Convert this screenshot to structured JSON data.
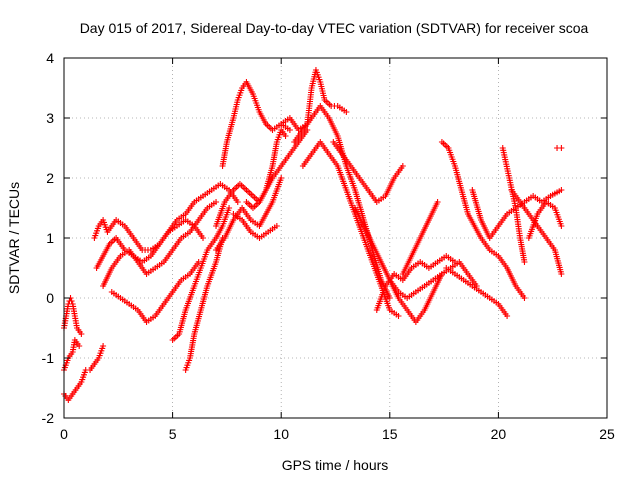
{
  "chart_data": {
    "type": "scatter",
    "title": "Day 015 of 2017, Sidereal Day-to-day VTEC variation (SDTVAR) for receiver scoa",
    "xlabel": "GPS time / hours",
    "ylabel": "SDTVAR / TECUs",
    "xlim": [
      0,
      25
    ],
    "ylim": [
      -2,
      4
    ],
    "xticks": [
      "0",
      "5",
      "10",
      "15",
      "20",
      "25"
    ],
    "yticks": [
      "-2",
      "-1",
      "0",
      "1",
      "2",
      "3",
      "4"
    ],
    "grid": true,
    "marker": "+",
    "colors": {
      "series": "#ff0000",
      "grid": "#a0a0a0",
      "axis": "#000000"
    },
    "series": [
      {
        "x": [
          0.0,
          0.2,
          0.4,
          0.6,
          0.8,
          1.0,
          1.2,
          1.4,
          1.6,
          1.8
        ],
        "y": [
          -1.6,
          -1.7,
          -1.6,
          -1.5,
          -1.4,
          -1.2,
          -1.2,
          -1.1,
          -1.0,
          -0.8
        ]
      },
      {
        "x": [
          0.0,
          0.2,
          0.4,
          0.5,
          0.7
        ],
        "y": [
          -1.2,
          -1.0,
          -0.9,
          -0.7,
          -0.8
        ]
      },
      {
        "x": [
          0.0,
          0.1,
          0.2,
          0.3,
          0.4,
          0.5,
          0.6,
          0.8
        ],
        "y": [
          -0.5,
          -0.3,
          -0.1,
          0.0,
          -0.1,
          -0.3,
          -0.5,
          -0.6
        ]
      },
      {
        "x": [
          1.4,
          1.6,
          1.8,
          2.0,
          2.4,
          2.8,
          3.2,
          3.6,
          4.0,
          4.4,
          4.8,
          5.2,
          5.6,
          6.0,
          6.4,
          6.8,
          7.2,
          7.6,
          8.0
        ],
        "y": [
          1.0,
          1.2,
          1.3,
          1.1,
          1.3,
          1.2,
          1.0,
          0.8,
          0.8,
          0.9,
          1.1,
          1.3,
          1.4,
          1.6,
          1.7,
          1.8,
          1.9,
          1.8,
          1.6
        ]
      },
      {
        "x": [
          1.5,
          1.8,
          2.1,
          2.4,
          2.8,
          3.2,
          3.6,
          4.0,
          4.4,
          4.8,
          5.2,
          5.6,
          6.0,
          6.4
        ],
        "y": [
          0.5,
          0.7,
          0.9,
          1.0,
          0.8,
          0.7,
          0.6,
          0.7,
          0.9,
          1.1,
          1.2,
          1.3,
          1.2,
          1.0
        ]
      },
      {
        "x": [
          1.8,
          2.2,
          2.6,
          3.0,
          3.4,
          3.8,
          4.2,
          4.6,
          5.0,
          5.4,
          5.8,
          6.2,
          6.6,
          7.0
        ],
        "y": [
          0.2,
          0.5,
          0.7,
          0.8,
          0.6,
          0.4,
          0.5,
          0.6,
          0.8,
          1.0,
          1.1,
          1.3,
          1.5,
          1.6
        ]
      },
      {
        "x": [
          2.2,
          2.6,
          3.0,
          3.4,
          3.8,
          4.2,
          4.6,
          5.0,
          5.4,
          5.8,
          6.2
        ],
        "y": [
          0.1,
          0.0,
          -0.1,
          -0.2,
          -0.4,
          -0.3,
          -0.1,
          0.1,
          0.3,
          0.4,
          0.6
        ]
      },
      {
        "x": [
          5.0,
          5.3,
          5.6,
          6.0,
          6.3,
          6.6,
          7.0,
          7.3,
          7.6
        ],
        "y": [
          -0.7,
          -0.6,
          -0.2,
          0.2,
          0.5,
          0.8,
          1.0,
          1.2,
          1.5
        ]
      },
      {
        "x": [
          5.6,
          5.8,
          6.0,
          6.3,
          6.6,
          7.0,
          7.3
        ],
        "y": [
          -1.2,
          -1.0,
          -0.6,
          -0.2,
          0.2,
          0.6,
          1.0
        ]
      },
      {
        "x": [
          7.0,
          7.4,
          7.8,
          8.1,
          8.4,
          8.7,
          9.0,
          9.3,
          9.6,
          10.0,
          10.4,
          10.8,
          11.2
        ],
        "y": [
          1.2,
          1.6,
          1.8,
          1.9,
          1.8,
          1.7,
          1.6,
          1.8,
          2.0,
          2.2,
          2.4,
          2.6,
          2.8
        ]
      },
      {
        "x": [
          7.3,
          7.5,
          7.8,
          8.0,
          8.2,
          8.4,
          8.7,
          9.0,
          9.3,
          9.6,
          10.0,
          10.4
        ],
        "y": [
          2.2,
          2.6,
          3.0,
          3.3,
          3.5,
          3.6,
          3.4,
          3.1,
          2.9,
          2.8,
          2.9,
          2.8
        ]
      },
      {
        "x": [
          7.0,
          7.4,
          7.8,
          8.2,
          8.6,
          9.0,
          9.3,
          9.6,
          10.0
        ],
        "y": [
          0.8,
          1.0,
          1.3,
          1.5,
          1.3,
          1.2,
          1.4,
          1.6,
          2.0
        ]
      },
      {
        "x": [
          8.4,
          8.7,
          9.0,
          9.3,
          9.6,
          9.8,
          10.0,
          10.2
        ],
        "y": [
          1.6,
          1.5,
          1.6,
          1.8,
          2.2,
          2.6,
          2.8,
          2.7
        ]
      },
      {
        "x": [
          7.8,
          8.2,
          8.6,
          9.0,
          9.4,
          9.8
        ],
        "y": [
          1.4,
          1.3,
          1.1,
          1.0,
          1.1,
          1.2
        ]
      },
      {
        "x": [
          10.0,
          10.4,
          10.8,
          11.2,
          11.4,
          11.6,
          11.8,
          12.0,
          12.3,
          12.6,
          13.0
        ],
        "y": [
          2.9,
          3.0,
          2.8,
          2.9,
          3.5,
          3.8,
          3.6,
          3.3,
          3.2,
          3.2,
          3.1
        ]
      },
      {
        "x": [
          10.6,
          11.0,
          11.4,
          11.8,
          12.2,
          12.6,
          13.0,
          13.4,
          13.8,
          14.2,
          14.6,
          15.0
        ],
        "y": [
          2.6,
          2.8,
          3.0,
          3.2,
          3.0,
          2.7,
          2.2,
          1.8,
          1.3,
          0.8,
          0.3,
          0.0
        ]
      },
      {
        "x": [
          11.0,
          11.4,
          11.8,
          12.2,
          12.6,
          13.0,
          13.4,
          13.8,
          14.2,
          14.6,
          15.0,
          15.4
        ],
        "y": [
          2.2,
          2.4,
          2.6,
          2.4,
          2.2,
          1.8,
          1.4,
          1.0,
          0.6,
          0.2,
          -0.2,
          -0.3
        ]
      },
      {
        "x": [
          12.4,
          12.8,
          13.2,
          13.6,
          14.0,
          14.4,
          14.8,
          15.2,
          15.6
        ],
        "y": [
          2.6,
          2.4,
          2.2,
          2.0,
          1.8,
          1.6,
          1.7,
          2.0,
          2.2
        ]
      },
      {
        "x": [
          13.4,
          13.8,
          14.2,
          14.6,
          15.0,
          15.4,
          15.8,
          16.2,
          16.6,
          17.0,
          17.4
        ],
        "y": [
          1.5,
          1.2,
          0.9,
          0.6,
          0.3,
          0.0,
          -0.2,
          -0.4,
          -0.2,
          0.1,
          0.4
        ]
      },
      {
        "x": [
          14.4,
          14.8,
          15.2,
          15.6,
          16.0,
          16.4,
          16.8,
          17.2,
          17.6,
          18.0
        ],
        "y": [
          -0.2,
          0.2,
          0.4,
          0.3,
          0.5,
          0.6,
          0.5,
          0.6,
          0.7,
          0.6
        ]
      },
      {
        "x": [
          15.0,
          15.4,
          15.8,
          16.2,
          16.6,
          17.0,
          17.4,
          17.8,
          18.2,
          18.6,
          19.0
        ],
        "y": [
          0.3,
          0.1,
          0.0,
          0.1,
          0.2,
          0.3,
          0.4,
          0.5,
          0.6,
          0.4,
          0.2
        ]
      },
      {
        "x": [
          15.6,
          16.0,
          16.4,
          16.8,
          17.2
        ],
        "y": [
          0.4,
          0.7,
          1.0,
          1.3,
          1.6
        ]
      },
      {
        "x": [
          17.4,
          17.7,
          18.0,
          18.3,
          18.6,
          18.9,
          19.2,
          19.6,
          20.0,
          20.4,
          20.8,
          21.2
        ],
        "y": [
          2.6,
          2.5,
          2.2,
          1.8,
          1.4,
          1.2,
          1.0,
          0.8,
          0.7,
          0.5,
          0.2,
          0.0
        ]
      },
      {
        "x": [
          17.6,
          18.0,
          18.4,
          18.8,
          19.2,
          19.6,
          20.0,
          20.4
        ],
        "y": [
          0.5,
          0.4,
          0.3,
          0.2,
          0.1,
          0.0,
          -0.1,
          -0.3
        ]
      },
      {
        "x": [
          18.8,
          19.2,
          19.6,
          20.0,
          20.4,
          20.8,
          21.2,
          21.6,
          22.0,
          22.4,
          22.9
        ],
        "y": [
          1.8,
          1.3,
          1.0,
          1.2,
          1.4,
          1.5,
          1.6,
          1.7,
          1.6,
          1.7,
          1.8
        ]
      },
      {
        "x": [
          20.2,
          20.5,
          20.8,
          21.0,
          21.2
        ],
        "y": [
          2.5,
          2.0,
          1.5,
          1.0,
          0.6
        ]
      },
      {
        "x": [
          20.6,
          21.0,
          21.4,
          21.8,
          22.2,
          22.6,
          22.9
        ],
        "y": [
          1.8,
          1.6,
          1.4,
          1.2,
          1.0,
          0.8,
          0.4
        ]
      },
      {
        "x": [
          21.4,
          21.8,
          22.2,
          22.6,
          22.9
        ],
        "y": [
          1.0,
          1.4,
          1.6,
          1.5,
          1.2
        ]
      },
      {
        "x": [
          22.7,
          22.9
        ],
        "y": [
          2.5,
          2.5
        ]
      }
    ]
  }
}
